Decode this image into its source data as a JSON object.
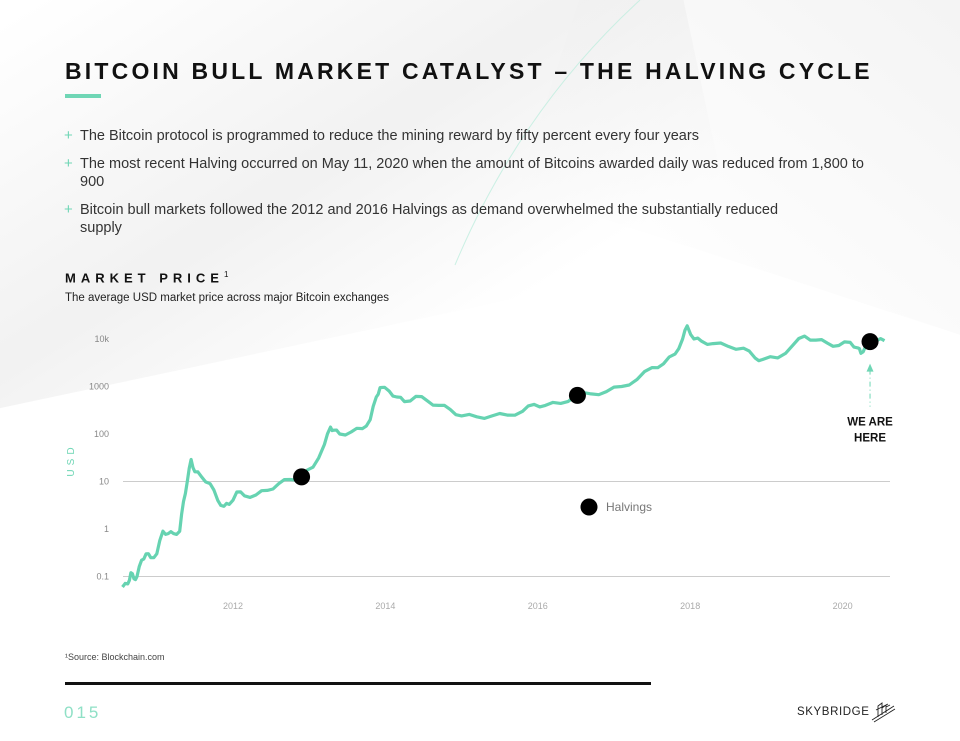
{
  "header": {
    "title": "BITCOIN BULL MARKET CATALYST – THE HALVING CYCLE"
  },
  "bullets": [
    {
      "marker": "+",
      "text": "The Bitcoin protocol is programmed to reduce the mining reward by fifty percent every four years"
    },
    {
      "marker": "+",
      "text": "The most recent Halving occurred on May 11, 2020 when the amount of Bitcoins awarded daily was reduced from 1,800 to 900"
    },
    {
      "marker": "+",
      "text": "Bitcoin bull markets followed the 2012 and 2016 Halvings as demand overwhelmed the substantially reduced supply"
    }
  ],
  "section": {
    "title": "MARKET PRICE",
    "footnote_marker": "1",
    "subtitle": "The average USD market price across major Bitcoin exchanges"
  },
  "colors": {
    "accent": "#6fd6b5",
    "line": "#66d3b1",
    "marker": "#000000",
    "grid": "#cccccc",
    "axis_label": "#6fd6b5",
    "tick_text": "#999999"
  },
  "chart_data": {
    "type": "line",
    "title": "MARKET PRICE",
    "xlabel": "",
    "ylabel": "USD",
    "yscale": "log",
    "xlim": [
      2010.5,
      2020.7
    ],
    "ylim": [
      0.05,
      25000
    ],
    "y_ticks": [
      10000,
      1000,
      100,
      10,
      1,
      0.1
    ],
    "y_tick_labels": [
      "10k",
      "1000",
      "100",
      "10",
      "1",
      "0.1"
    ],
    "x_ticks": [
      2012,
      2014,
      2016,
      2018,
      2020
    ],
    "x_tick_labels": [
      "2012",
      "2014",
      "2016",
      "2018",
      "2020"
    ],
    "gridlines_at": [
      10,
      0.1
    ],
    "series": [
      {
        "name": "Market Price (USD)",
        "x": [
          2010.55,
          2010.62,
          2010.66,
          2010.7,
          2010.74,
          2010.8,
          2010.86,
          2010.92,
          2011.0,
          2011.08,
          2011.15,
          2011.22,
          2011.3,
          2011.35,
          2011.4,
          2011.45,
          2011.5,
          2011.58,
          2011.7,
          2011.8,
          2011.88,
          2011.95,
          2012.05,
          2012.15,
          2012.3,
          2012.45,
          2012.6,
          2012.75,
          2012.9,
          2013.05,
          2013.2,
          2013.28,
          2013.32,
          2013.4,
          2013.55,
          2013.7,
          2013.8,
          2013.88,
          2013.93,
          2014.05,
          2014.15,
          2014.25,
          2014.4,
          2014.55,
          2014.7,
          2014.85,
          2015.0,
          2015.2,
          2015.4,
          2015.6,
          2015.8,
          2015.95,
          2016.1,
          2016.3,
          2016.5,
          2016.7,
          2016.9,
          2017.1,
          2017.3,
          2017.5,
          2017.65,
          2017.8,
          2017.9,
          2017.96,
          2018.05,
          2018.15,
          2018.3,
          2018.5,
          2018.7,
          2018.85,
          2018.95,
          2019.15,
          2019.35,
          2019.5,
          2019.65,
          2019.8,
          2019.95,
          2020.1,
          2020.2,
          2020.24,
          2020.3,
          2020.36,
          2020.45,
          2020.55
        ],
        "values": [
          0.06,
          0.07,
          0.12,
          0.09,
          0.1,
          0.22,
          0.3,
          0.25,
          0.3,
          0.9,
          0.8,
          0.8,
          0.9,
          3.8,
          10,
          29,
          16,
          13,
          9,
          4,
          3,
          3.3,
          6,
          5,
          5.2,
          6.5,
          9,
          11,
          12.5,
          20,
          60,
          140,
          120,
          100,
          110,
          130,
          200,
          600,
          950,
          800,
          600,
          480,
          620,
          500,
          400,
          330,
          240,
          230,
          240,
          250,
          300,
          420,
          400,
          440,
          650,
          700,
          780,
          1000,
          1400,
          2500,
          3000,
          4800,
          10000,
          19000,
          10000,
          9000,
          8000,
          7000,
          6400,
          4000,
          3700,
          4000,
          7500,
          11500,
          9500,
          8200,
          7300,
          8500,
          6500,
          5000,
          7000,
          8800,
          9300,
          9200
        ]
      }
    ],
    "halvings": {
      "label": "Halvings",
      "points": [
        {
          "x": 2012.9,
          "y": 12.5
        },
        {
          "x": 2016.52,
          "y": 650
        },
        {
          "x": 2020.36,
          "y": 8800
        }
      ]
    },
    "annotation": {
      "text_line1": "WE ARE",
      "text_line2": "HERE"
    }
  },
  "footer": {
    "source": "¹Source: Blockchain.com",
    "page_number": "015",
    "brand": "SKYBRIDGE"
  }
}
